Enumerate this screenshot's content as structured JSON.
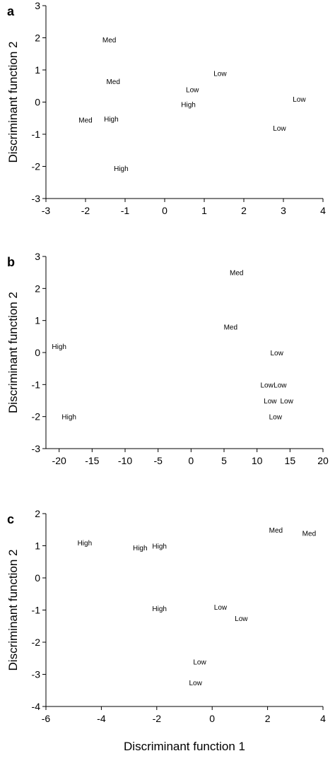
{
  "chart_data": [
    {
      "type": "scatter",
      "panel": "a",
      "xlim": [
        -3,
        4
      ],
      "ylim": [
        -3,
        3
      ],
      "xticks": [
        -3,
        -2,
        -1,
        0,
        1,
        2,
        3,
        4
      ],
      "yticks": [
        -3,
        -2,
        -1,
        0,
        1,
        2,
        3
      ],
      "ylabel": "Discriminant function 2",
      "xlabel": "",
      "points": [
        {
          "x": -1.4,
          "y": 1.95,
          "label": "Med"
        },
        {
          "x": -1.3,
          "y": 0.65,
          "label": "Med"
        },
        {
          "x": 1.4,
          "y": 0.9,
          "label": "Low"
        },
        {
          "x": 0.7,
          "y": 0.4,
          "label": "Low"
        },
        {
          "x": 0.6,
          "y": -0.07,
          "label": "High"
        },
        {
          "x": 3.4,
          "y": 0.1,
          "label": "Low"
        },
        {
          "x": -2.0,
          "y": -0.55,
          "label": "Med"
        },
        {
          "x": -1.35,
          "y": -0.52,
          "label": "High"
        },
        {
          "x": 2.9,
          "y": -0.8,
          "label": "Low"
        },
        {
          "x": -1.1,
          "y": -2.05,
          "label": "High"
        }
      ]
    },
    {
      "type": "scatter",
      "panel": "b",
      "xlim": [
        -22,
        20
      ],
      "ylim": [
        -3,
        3
      ],
      "xticks": [
        -20,
        -15,
        -10,
        -5,
        0,
        5,
        10,
        15,
        20
      ],
      "yticks": [
        -3,
        -2,
        -1,
        0,
        1,
        2,
        3
      ],
      "ylabel": "Discriminant function 2",
      "xlabel": "",
      "points": [
        {
          "x": 6.9,
          "y": 2.5,
          "label": "Med"
        },
        {
          "x": 6.0,
          "y": 0.8,
          "label": "Med"
        },
        {
          "x": -20.0,
          "y": 0.2,
          "label": "High"
        },
        {
          "x": 13.0,
          "y": 0.0,
          "label": "Low"
        },
        {
          "x": 11.5,
          "y": -1.0,
          "label": "Low"
        },
        {
          "x": 13.5,
          "y": -1.0,
          "label": "Low"
        },
        {
          "x": 12.0,
          "y": -1.5,
          "label": "Low"
        },
        {
          "x": 14.5,
          "y": -1.5,
          "label": "Low"
        },
        {
          "x": 12.8,
          "y": -2.0,
          "label": "Low"
        },
        {
          "x": -18.5,
          "y": -2.0,
          "label": "High"
        }
      ]
    },
    {
      "type": "scatter",
      "panel": "c",
      "xlim": [
        -6,
        4
      ],
      "ylim": [
        -4,
        2
      ],
      "xticks": [
        -6,
        -4,
        -2,
        0,
        2,
        4
      ],
      "yticks": [
        -4,
        -3,
        -2,
        -1,
        0,
        1,
        2
      ],
      "ylabel": "Discriminant function 2",
      "xlabel": "Discriminant function 1",
      "points": [
        {
          "x": 2.3,
          "y": 1.5,
          "label": "Med"
        },
        {
          "x": 3.5,
          "y": 1.4,
          "label": "Med"
        },
        {
          "x": -4.6,
          "y": 1.1,
          "label": "High"
        },
        {
          "x": -2.6,
          "y": 0.95,
          "label": "High"
        },
        {
          "x": -1.9,
          "y": 1.0,
          "label": "High"
        },
        {
          "x": -1.9,
          "y": -0.95,
          "label": "High"
        },
        {
          "x": 0.3,
          "y": -0.9,
          "label": "Low"
        },
        {
          "x": 1.05,
          "y": -1.25,
          "label": "Low"
        },
        {
          "x": -0.45,
          "y": -2.6,
          "label": "Low"
        },
        {
          "x": -0.6,
          "y": -3.25,
          "label": "Low"
        }
      ]
    }
  ]
}
